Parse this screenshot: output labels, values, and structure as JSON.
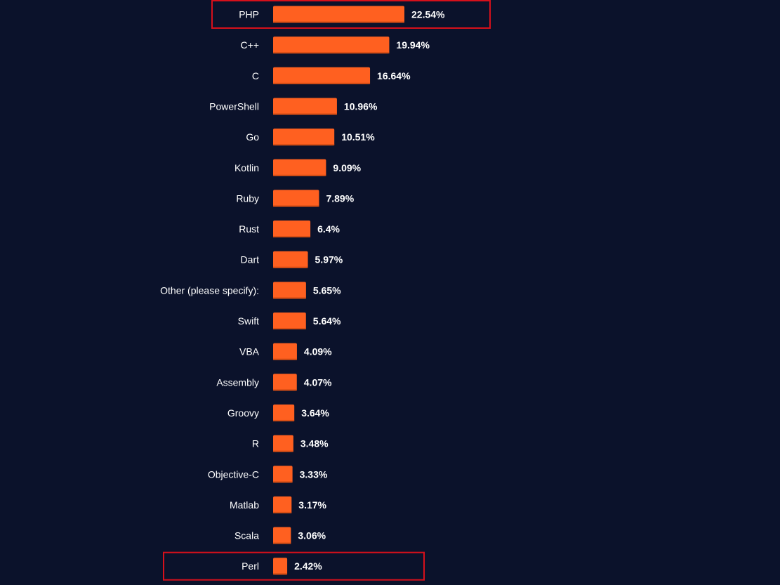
{
  "colors": {
    "background": "#0b122b",
    "bar": "#ff6020",
    "highlight_box": "#d6101b",
    "text": "#ffffff"
  },
  "chart_data": {
    "type": "bar",
    "orientation": "horizontal",
    "title": "",
    "xlabel": "",
    "ylabel": "",
    "xlim": [
      0,
      22.54
    ],
    "grid": false,
    "categories": [
      "PHP",
      "C++",
      "C",
      "PowerShell",
      "Go",
      "Kotlin",
      "Ruby",
      "Rust",
      "Dart",
      "Other (please specify):",
      "Swift",
      "VBA",
      "Assembly",
      "Groovy",
      "R",
      "Objective-C",
      "Matlab",
      "Scala",
      "Perl"
    ],
    "values": [
      22.54,
      19.94,
      16.64,
      10.96,
      10.51,
      9.09,
      7.89,
      6.4,
      5.97,
      5.65,
      5.64,
      4.09,
      4.07,
      3.64,
      3.48,
      3.33,
      3.17,
      3.06,
      2.42
    ],
    "value_labels": [
      "22.54%",
      "19.94%",
      "16.64%",
      "10.96%",
      "10.51%",
      "9.09%",
      "7.89%",
      "6.4%",
      "5.97%",
      "5.65%",
      "5.64%",
      "4.09%",
      "4.07%",
      "3.64%",
      "3.48%",
      "3.33%",
      "3.17%",
      "3.06%",
      "2.42%"
    ],
    "highlighted_categories": [
      "PHP",
      "Perl"
    ]
  }
}
